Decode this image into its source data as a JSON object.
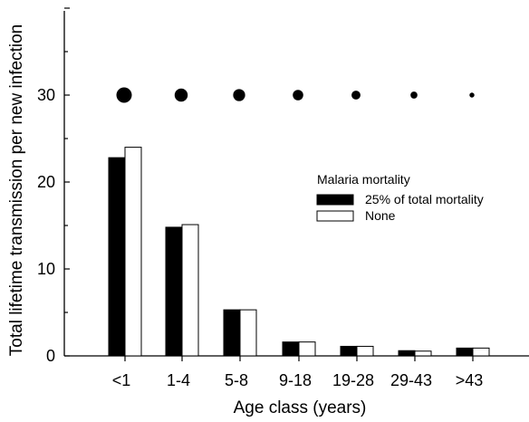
{
  "chart_data": {
    "type": "bar",
    "title": "",
    "xlabel": "Age class (years)",
    "ylabel": "Total lifetime transmission per new infection",
    "ylim": [
      0,
      40
    ],
    "yticks": [
      0,
      10,
      20,
      30
    ],
    "grid": false,
    "categories": [
      "<1",
      "1-4",
      "5-8",
      "9-18",
      "19-28",
      "29-43",
      ">43"
    ],
    "series": [
      {
        "name": "25% of total mortality",
        "values": [
          22.8,
          14.8,
          5.3,
          1.6,
          1.1,
          0.6,
          0.9
        ],
        "color": "#000000"
      },
      {
        "name": "None",
        "values": [
          24.0,
          15.1,
          5.3,
          1.6,
          1.1,
          0.55,
          0.9
        ],
        "color": "#ffffff"
      }
    ],
    "dots": {
      "y": 30,
      "relative_size": [
        1.0,
        0.85,
        0.78,
        0.68,
        0.58,
        0.45,
        0.32
      ],
      "color": "#000000"
    },
    "legend": {
      "title": "Malaria mortality",
      "placement": "center-right"
    }
  }
}
